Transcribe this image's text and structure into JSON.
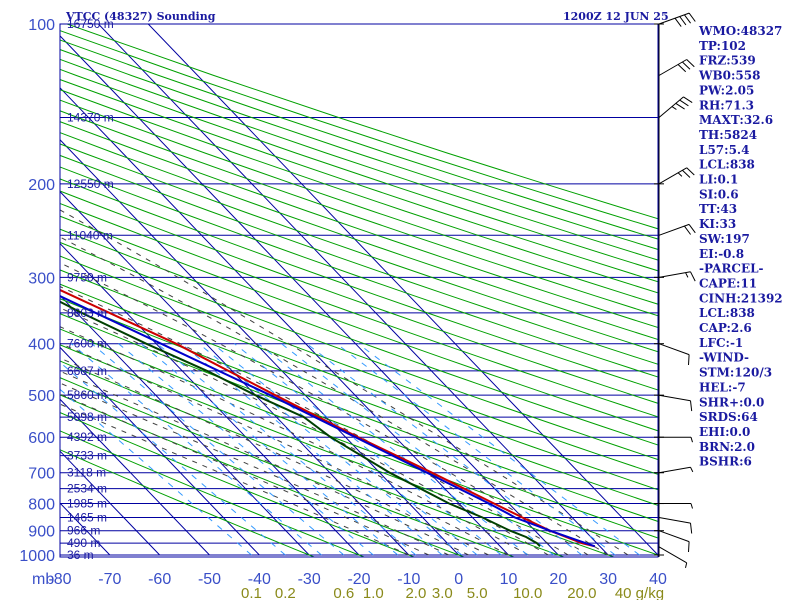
{
  "header": {
    "title": "VTCC (48327) Sounding",
    "time": "1200Z 12 JUN 25"
  },
  "indices": [
    "WMO:48327",
    "TP:102",
    "FRZ:539",
    "WB0:558",
    "PW:2.05",
    "RH:71.3",
    "MAXT:32.6",
    "TH:5824",
    "L57:5.4",
    "LCL:838",
    "LI:0.1",
    "SI:0.6",
    "TT:43",
    "KI:33",
    "SW:197",
    "EI:-0.8",
    "-PARCEL-",
    "CAPE:11",
    "CINH:21392",
    "LCL:838",
    "CAP:2.6",
    "LFC:-1",
    "-WIND-",
    "STM:120/3",
    "HEL:-7",
    "SHR+:0.0",
    "SRDS:64",
    "EHI:0.0",
    "BRN:2.0",
    "BSHR:6"
  ],
  "colors": {
    "frame": "#0000a0",
    "isotherm": "#0000a0",
    "dry_adiabat": "#00a000",
    "moist_adiabat": "#404040",
    "mixing_ratio": "#3399ff",
    "temperature": "#cc0000",
    "parcel": "#0000cc",
    "dewpoint": "#004000",
    "wind": "#000000"
  },
  "chart_data": {
    "type": "line",
    "title": "VTCC (48327) Sounding",
    "subtitle": "1200Z 12 JUN 25",
    "xlabel": "",
    "ylabel": "mb",
    "x_unit": "C",
    "mixing_ratio_unit": "g/kg",
    "xlim": [
      -80,
      40
    ],
    "ylim": [
      1000,
      100
    ],
    "y_scale": "log",
    "grid": true,
    "pressure_ticks": [
      {
        "p": 100,
        "label": "100"
      },
      {
        "p": 200,
        "label": "200"
      },
      {
        "p": 300,
        "label": "300"
      },
      {
        "p": 400,
        "label": "400"
      },
      {
        "p": 500,
        "label": "500"
      },
      {
        "p": 600,
        "label": "600"
      },
      {
        "p": 700,
        "label": "700"
      },
      {
        "p": 800,
        "label": "800"
      },
      {
        "p": 900,
        "label": "900"
      },
      {
        "p": 1000,
        "label": "1000"
      }
    ],
    "temp_ticks": [
      {
        "t": -80,
        "label": "-80"
      },
      {
        "t": -70,
        "label": "-70"
      },
      {
        "t": -60,
        "label": "-60"
      },
      {
        "t": -50,
        "label": "-50"
      },
      {
        "t": -40,
        "label": "-40"
      },
      {
        "t": -30,
        "label": "-30"
      },
      {
        "t": -20,
        "label": "-20"
      },
      {
        "t": -10,
        "label": "-10"
      },
      {
        "t": 0,
        "label": "0"
      },
      {
        "t": 10,
        "label": "10"
      },
      {
        "t": 20,
        "label": "20"
      },
      {
        "t": 30,
        "label": "30"
      },
      {
        "t": 40,
        "label": "40"
      }
    ],
    "height_labels": [
      {
        "p": 100,
        "label": "16750 m"
      },
      {
        "p": 150,
        "label": "14370 m"
      },
      {
        "p": 200,
        "label": "12550 m"
      },
      {
        "p": 250,
        "label": "11040 m"
      },
      {
        "p": 300,
        "label": "9750 m"
      },
      {
        "p": 350,
        "label": "8603 m"
      },
      {
        "p": 400,
        "label": "7600 m"
      },
      {
        "p": 450,
        "label": "6687 m"
      },
      {
        "p": 500,
        "label": "5860 m"
      },
      {
        "p": 550,
        "label": "5098 m"
      },
      {
        "p": 600,
        "label": "4392 m"
      },
      {
        "p": 650,
        "label": "3733 m"
      },
      {
        "p": 700,
        "label": "3118 m"
      },
      {
        "p": 750,
        "label": "2534 m"
      },
      {
        "p": 800,
        "label": "1985 m"
      },
      {
        "p": 850,
        "label": "1465 m"
      },
      {
        "p": 900,
        "label": "966 m"
      },
      {
        "p": 950,
        "label": "490 m"
      },
      {
        "p": 1000,
        "label": "36 m"
      }
    ],
    "mixing_ratio_labels": [
      {
        "w": 0.1,
        "label": "0.1"
      },
      {
        "w": 0.2,
        "label": "0.2"
      },
      {
        "w": 0.6,
        "label": "0.6"
      },
      {
        "w": 1.0,
        "label": "1.0"
      },
      {
        "w": 2.0,
        "label": "2.0"
      },
      {
        "w": 3.0,
        "label": "3.0"
      },
      {
        "w": 5.0,
        "label": "5.0"
      },
      {
        "w": 10.0,
        "label": "10.0"
      },
      {
        "w": 20.0,
        "label": "20.0"
      },
      {
        "w": 40.0,
        "label": "40 g/kg"
      }
    ],
    "series": [
      {
        "role": "temperature",
        "p": [
          963,
          950,
          925,
          900,
          850,
          800,
          700,
          600,
          500,
          400,
          300,
          250,
          200,
          150,
          125,
          110,
          100
        ],
        "t": [
          29.0,
          27.0,
          25.0,
          23.0,
          20.0,
          17.0,
          10.5,
          2.5,
          -6.0,
          -16.0,
          -32.0,
          -42.0,
          -54.0,
          -68.0,
          -74.0,
          -78.0,
          -79.5
        ]
      },
      {
        "role": "parcel",
        "p": [
          963,
          900,
          850,
          838,
          800,
          700,
          600,
          500,
          400,
          300,
          250,
          200,
          150,
          125,
          110,
          100
        ],
        "t": [
          29.0,
          23.0,
          18.5,
          18.0,
          16.0,
          9.5,
          2.0,
          -7.0,
          -19.0,
          -34.5,
          -44.5,
          -56.5,
          -71.0,
          -76.0,
          -79.0,
          -81.0
        ]
      },
      {
        "role": "dewpoint",
        "p": [
          963,
          950,
          925,
          900,
          850,
          800,
          700,
          600,
          550,
          500,
          450,
          400,
          350,
          300,
          275,
          265,
          250,
          240,
          220,
          200,
          175,
          150,
          140,
          120,
          110,
          100
        ],
        "t": [
          18.0,
          18.0,
          17.0,
          15.0,
          12.0,
          8.0,
          2.0,
          -3.0,
          -4.5,
          -10.0,
          -15.0,
          -22.0,
          -29.0,
          -36.0,
          -47.0,
          -51.0,
          -50.0,
          -54.0,
          -58.0,
          -60.0,
          -68.0,
          -73.0,
          -79.0,
          -80.0,
          -83.0,
          -83.0
        ]
      }
    ],
    "wind_barbs": [
      {
        "p": 965,
        "dir": 120,
        "spd": 5
      },
      {
        "p": 900,
        "dir": 110,
        "spd": 10
      },
      {
        "p": 850,
        "dir": 100,
        "spd": 10
      },
      {
        "p": 800,
        "dir": 90,
        "spd": 5
      },
      {
        "p": 700,
        "dir": 80,
        "spd": 5
      },
      {
        "p": 600,
        "dir": 90,
        "spd": 5
      },
      {
        "p": 500,
        "dir": 100,
        "spd": 10
      },
      {
        "p": 400,
        "dir": 110,
        "spd": 10
      },
      {
        "p": 300,
        "dir": 80,
        "spd": 15
      },
      {
        "p": 250,
        "dir": 70,
        "spd": 20
      },
      {
        "p": 200,
        "dir": 60,
        "spd": 25
      },
      {
        "p": 150,
        "dir": 50,
        "spd": 35
      },
      {
        "p": 125,
        "dir": 60,
        "spd": 30
      },
      {
        "p": 100,
        "dir": 70,
        "spd": 40
      }
    ]
  }
}
